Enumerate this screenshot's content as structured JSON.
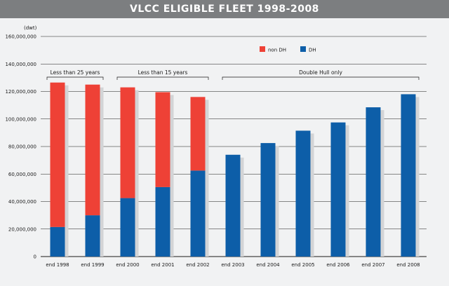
{
  "header": {
    "title": "VLCC ELIGIBLE FLEET 1998-2008"
  },
  "colors": {
    "nonDH": "#ee4136",
    "DH": "#0d5ea8",
    "shadow": "#d3d4d6",
    "grid": "#1a1a1a"
  },
  "chart_data": {
    "type": "bar",
    "stacked": true,
    "unit_label": "(dwt)",
    "ylim": [
      0,
      160000000
    ],
    "yticks": [
      0,
      20000000,
      40000000,
      60000000,
      80000000,
      100000000,
      120000000,
      140000000,
      160000000
    ],
    "ytick_labels": [
      "0",
      "20,000,000",
      "40,000,000",
      "60,000,000",
      "80,000,000",
      "100,000,000",
      "120,000,000",
      "140,000,000",
      "160,000,000"
    ],
    "grid": true,
    "legend_position": "top-right",
    "categories": [
      "end 1998",
      "end 1999",
      "end 2000",
      "end 2001",
      "end 2002",
      "end 2003",
      "end 2004",
      "end 2005",
      "end 2006",
      "end 2007",
      "end 2008"
    ],
    "series": [
      {
        "name": "DH",
        "values": [
          21500000,
          30000000,
          42500000,
          50500000,
          62500000,
          74000000,
          82500000,
          91500000,
          97500000,
          108500000,
          118000000
        ]
      },
      {
        "name": "non DH",
        "values": [
          105000000,
          95000000,
          80500000,
          69000000,
          53500000,
          0,
          0,
          0,
          0,
          0,
          0
        ]
      }
    ],
    "annotations": [
      {
        "label": "Less than 25 years",
        "from": 0,
        "to": 1
      },
      {
        "label": "Less than 15 years",
        "from": 2,
        "to": 4
      },
      {
        "label": "Double Hull only",
        "from": 5,
        "to": 10
      }
    ]
  }
}
